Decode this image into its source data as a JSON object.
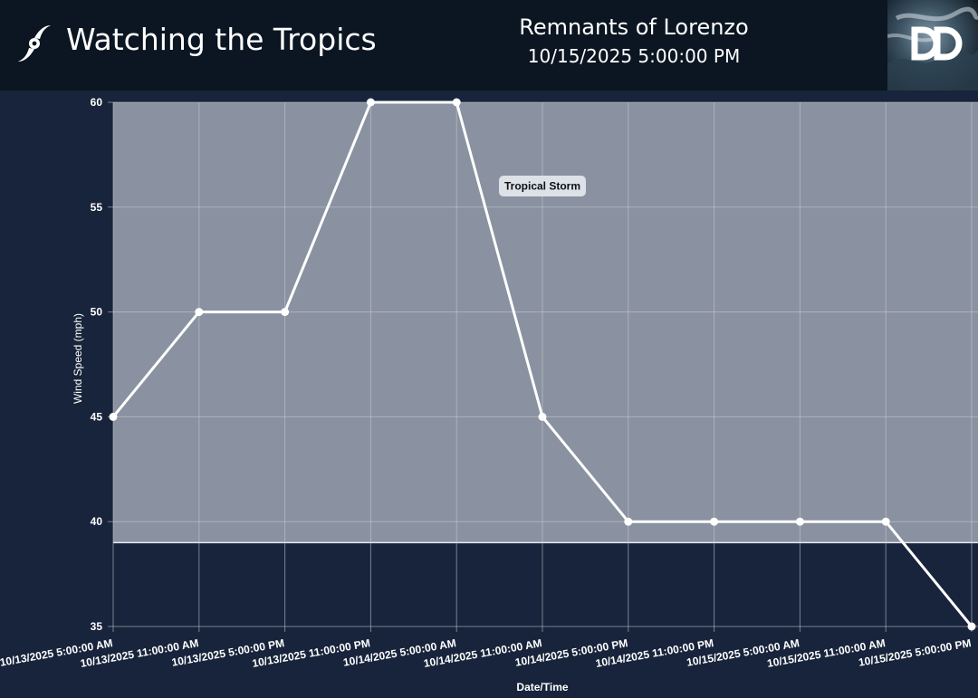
{
  "header": {
    "app_title": "Watching the Tropics",
    "storm_name": "Remnants of Lorenzo",
    "timestamp": "10/15/2025 5:00:00 PM",
    "icon": "hurricane-icon",
    "logo": "dd-logo-globe"
  },
  "chart_data": {
    "type": "line",
    "x": [
      "10/13/2025 5:00:00 AM",
      "10/13/2025 11:00:00 AM",
      "10/13/2025 5:00:00 PM",
      "10/13/2025 11:00:00 PM",
      "10/14/2025 5:00:00 AM",
      "10/14/2025 11:00:00 AM",
      "10/14/2025 5:00:00 PM",
      "10/14/2025 11:00:00 PM",
      "10/15/2025 5:00:00 AM",
      "10/15/2025 11:00:00 AM",
      "10/15/2025 5:00:00 PM"
    ],
    "series": [
      {
        "values": [
          45,
          50,
          50,
          60,
          60,
          45,
          40,
          40,
          40,
          40,
          35
        ]
      }
    ],
    "xlabel": "Date/Time",
    "ylabel": "Wind Speed (mph)",
    "ylim": [
      35,
      60
    ],
    "yticks": [
      35,
      40,
      45,
      50,
      55,
      60
    ],
    "grid": true,
    "category_band": {
      "label": "Tropical Storm",
      "from": 39,
      "to": 60
    },
    "colors": {
      "line": "#ffffff",
      "band": "#8a91a0",
      "background": "#18243b",
      "grid": "#c5cad3"
    }
  }
}
